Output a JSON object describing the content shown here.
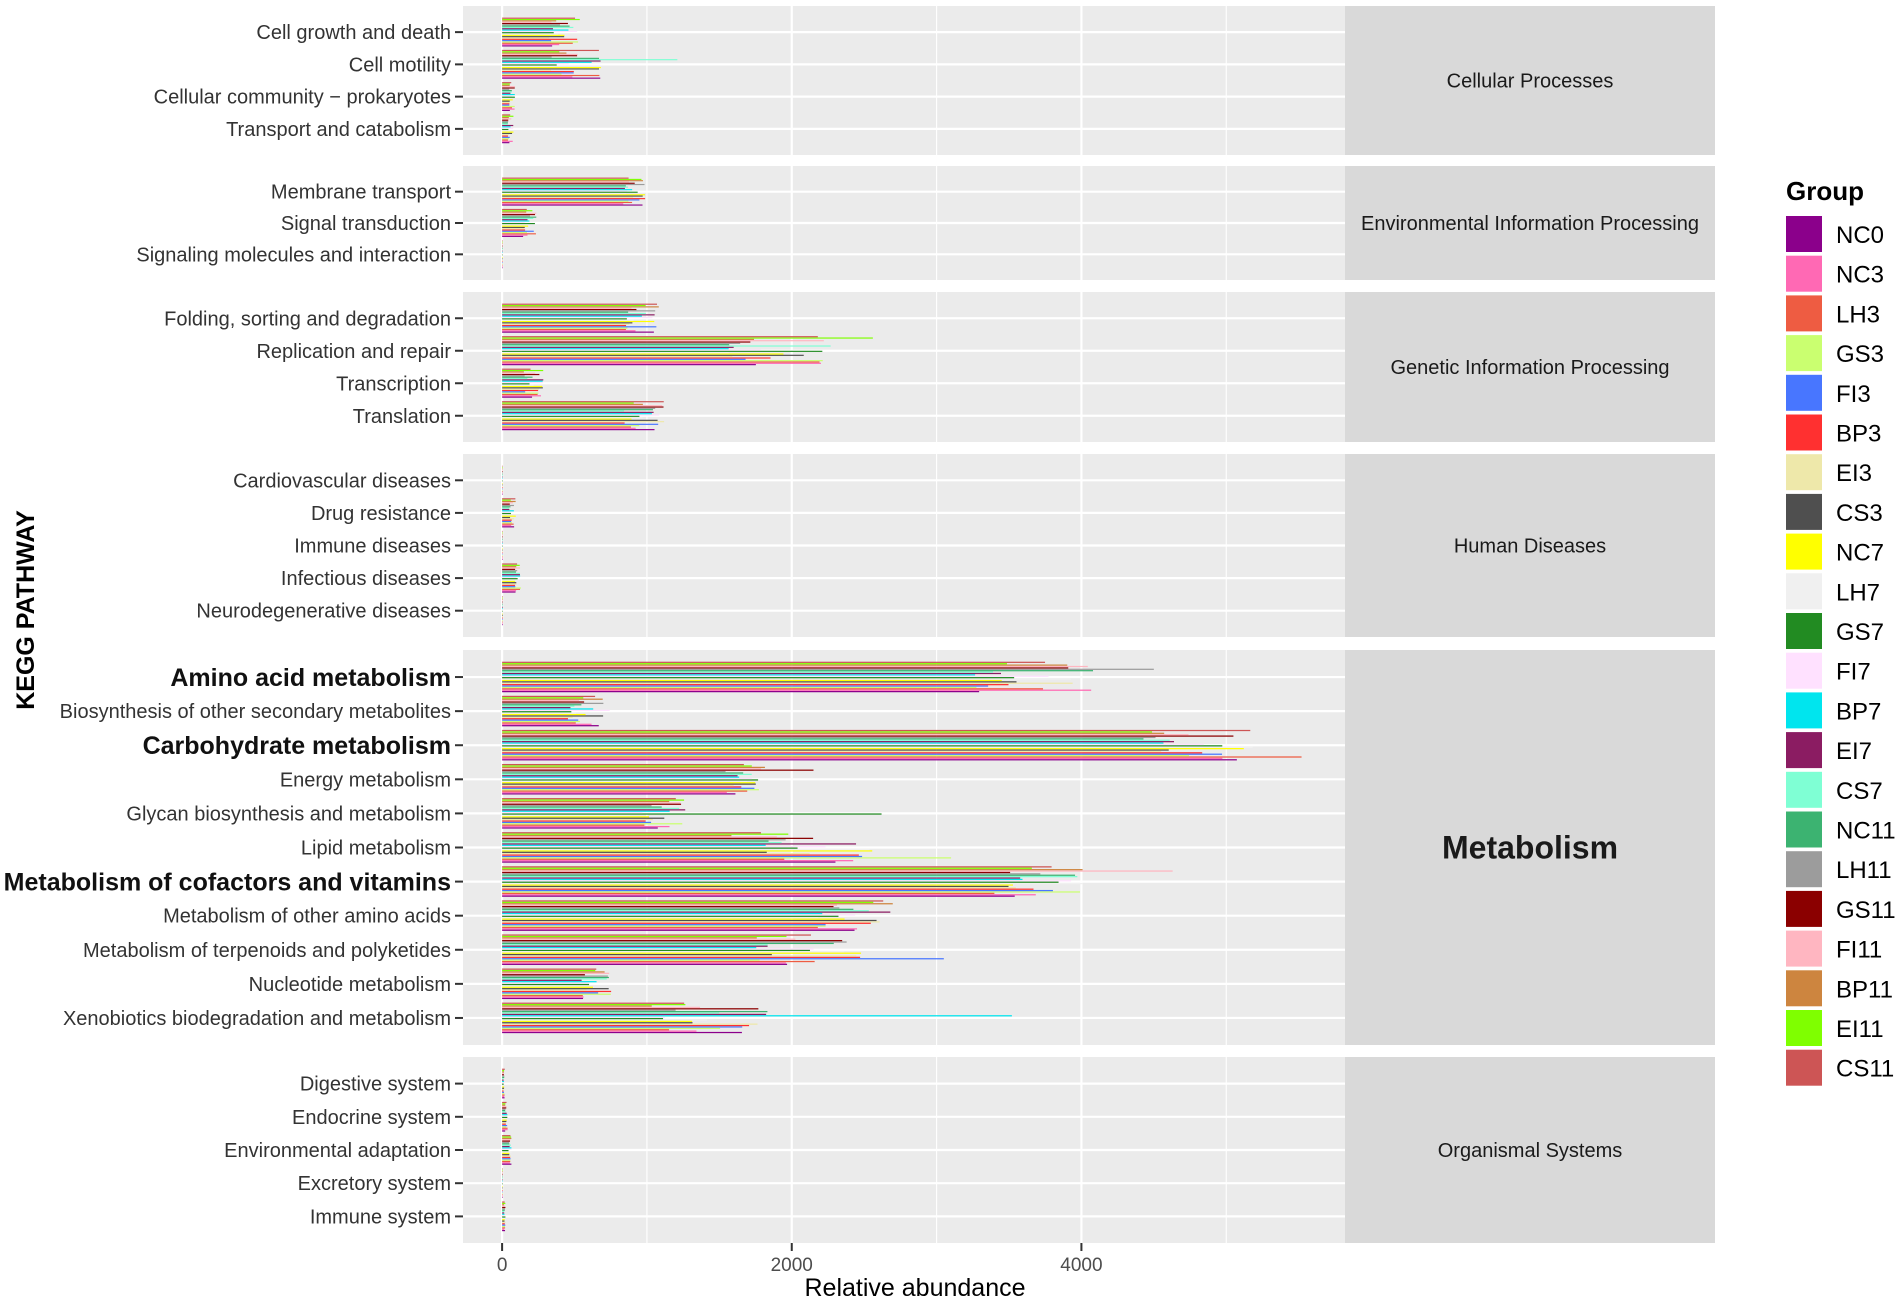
{
  "chart_data": {
    "type": "bar",
    "orientation": "horizontal",
    "faceted": true,
    "xlabel": "Relative abundance",
    "ylabel": "KEGG PATHWAY",
    "xlim": [
      -270,
      5820
    ],
    "xticks": [
      0,
      2000,
      4000
    ],
    "legend": {
      "title": "Group",
      "position": "right",
      "entries": [
        "NC0",
        "NC3",
        "LH3",
        "GS3",
        "FI3",
        "BP3",
        "EI3",
        "CS3",
        "NC7",
        "LH7",
        "GS7",
        "FI7",
        "BP7",
        "EI7",
        "CS7",
        "NC11",
        "LH11",
        "GS11",
        "FI11",
        "BP11",
        "EI11",
        "CS11"
      ]
    },
    "colors": [
      "#8B008B",
      "#FF69B4",
      "#EE5C42",
      "#CAFF70",
      "#4876FF",
      "#FF3030",
      "#EEE8AA",
      "#4F4F4F",
      "#FFFF00",
      "#F0F0F0",
      "#228B22",
      "#FFE1FF",
      "#00E5EE",
      "#8B1C62",
      "#7FFFD4",
      "#3CB371",
      "#9C9C9C",
      "#8B0000",
      "#FFB6C1",
      "#CD853F",
      "#7FFF00",
      "#CD5555"
    ],
    "facets": [
      {
        "name": "Cellular Processes",
        "categories": [
          {
            "label": "Transport and catabolism",
            "mean": 60,
            "spread": 0.35
          },
          {
            "label": "Cellular community − prokaryotes",
            "mean": 70,
            "spread": 0.3
          },
          {
            "label": "Cell motility",
            "mean": 520,
            "spread": 0.35,
            "max": 1210
          },
          {
            "label": "Cell growth and death",
            "mean": 430,
            "spread": 0.25
          }
        ]
      },
      {
        "name": "Environmental Information Processing",
        "categories": [
          {
            "label": "Signaling molecules and interaction",
            "mean": 3,
            "spread": 0.2
          },
          {
            "label": "Signal transduction",
            "mean": 190,
            "spread": 0.25
          },
          {
            "label": "Membrane transport",
            "mean": 900,
            "spread": 0.1
          }
        ]
      },
      {
        "name": "Genetic Information Processing",
        "categories": [
          {
            "label": "Translation",
            "mean": 1000,
            "spread": 0.18
          },
          {
            "label": "Transcription",
            "mean": 230,
            "spread": 0.35
          },
          {
            "label": "Replication and repair",
            "mean": 1950,
            "spread": 0.2,
            "max": 2560
          },
          {
            "label": "Folding, sorting and degradation",
            "mean": 970,
            "spread": 0.12
          }
        ]
      },
      {
        "name": "Human Diseases",
        "categories": [
          {
            "label": "Neurodegenerative diseases",
            "mean": 4,
            "spread": 0.2
          },
          {
            "label": "Infectious diseases",
            "mean": 110,
            "spread": 0.2
          },
          {
            "label": "Immune diseases",
            "mean": 3,
            "spread": 0.2
          },
          {
            "label": "Drug resistance",
            "mean": 70,
            "spread": 0.35
          },
          {
            "label": "Cardiovascular diseases",
            "mean": 3,
            "spread": 0.2
          }
        ]
      },
      {
        "name": "Metabolism",
        "bold": true,
        "categories": [
          {
            "label": "Xenobiotics biodegradation and metabolism",
            "mean": 1450,
            "spread": 0.3,
            "max": 3520
          },
          {
            "label": "Nucleotide metabolism",
            "mean": 650,
            "spread": 0.18
          },
          {
            "label": "Metabolism of terpenoids and polyketides",
            "mean": 2150,
            "spread": 0.2,
            "max": 3050
          },
          {
            "label": "Metabolism of other amino acids",
            "mean": 2450,
            "spread": 0.12
          },
          {
            "label": "Metabolism of cofactors and vitamins",
            "mean": 3700,
            "spread": 0.1,
            "max": 4630,
            "bold": true
          },
          {
            "label": "Lipid metabolism",
            "mean": 2100,
            "spread": 0.25,
            "max": 3100
          },
          {
            "label": "Glycan biosynthesis and metabolism",
            "mean": 1100,
            "spread": 0.2,
            "max": 2620
          },
          {
            "label": "Energy metabolism",
            "mean": 1650,
            "spread": 0.1,
            "max": 2150
          },
          {
            "label": "Carbohydrate metabolism",
            "mean": 4800,
            "spread": 0.08,
            "max": 5520,
            "bold": true
          },
          {
            "label": "Biosynthesis of other secondary metabolites",
            "mean": 600,
            "spread": 0.25
          },
          {
            "label": "Amino acid metabolism",
            "mean": 3650,
            "spread": 0.12,
            "max": 4500,
            "bold": true
          }
        ]
      },
      {
        "name": "Organismal Systems",
        "categories": [
          {
            "label": "Immune system",
            "mean": 18,
            "spread": 0.3
          },
          {
            "label": "Excretory system",
            "mean": 3,
            "spread": 0.2
          },
          {
            "label": "Environmental adaptation",
            "mean": 55,
            "spread": 0.2
          },
          {
            "label": "Endocrine system",
            "mean": 30,
            "spread": 0.3
          },
          {
            "label": "Digestive system",
            "mean": 14,
            "spread": 0.3
          }
        ]
      }
    ]
  }
}
